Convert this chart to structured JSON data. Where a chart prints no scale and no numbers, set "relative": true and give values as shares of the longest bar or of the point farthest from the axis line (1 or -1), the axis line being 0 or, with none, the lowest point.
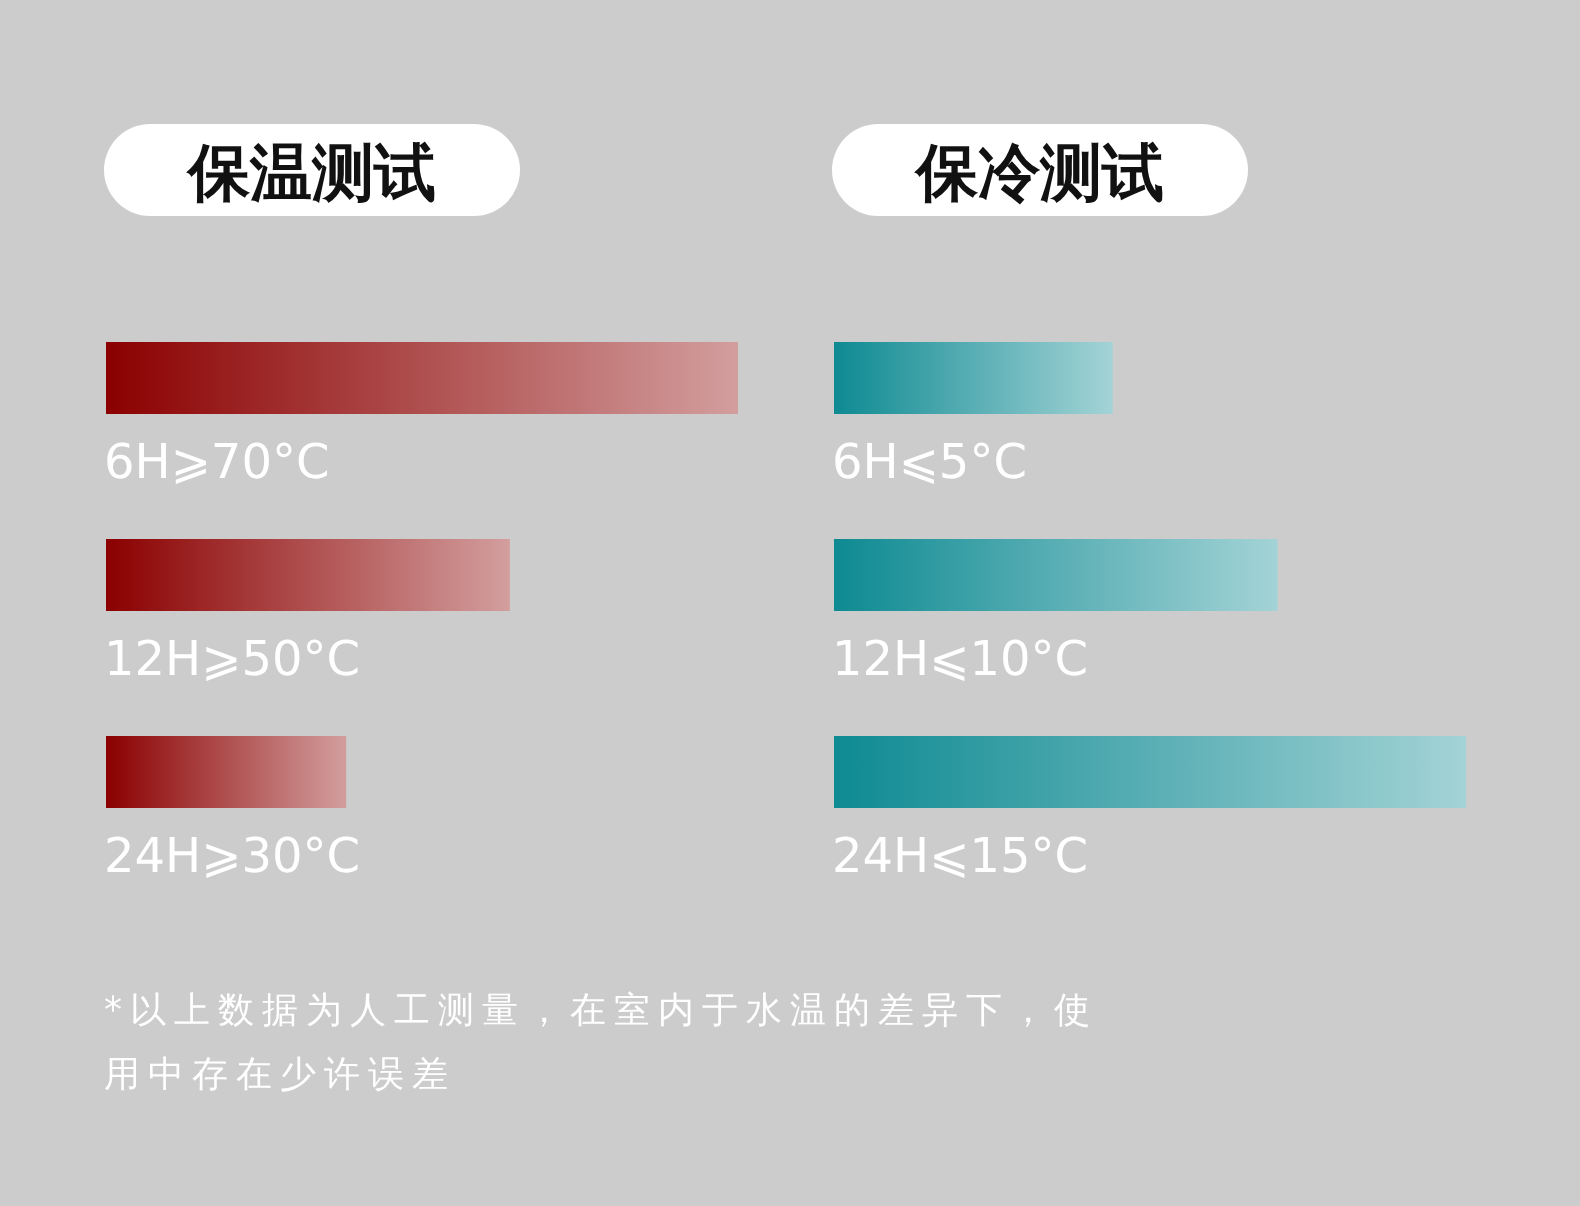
{
  "chart_data": [
    {
      "type": "bar",
      "title": "保温测试",
      "orientation": "horizontal",
      "relative": true,
      "categories": [
        "6H⩾70°C",
        "12H⩾50°C",
        "24H⩾30°C"
      ],
      "series": [
        {
          "color": "#8b0000",
          "values": [
            1,
            0.639,
            0.38
          ]
        }
      ],
      "annotations": [
        "*以上数据为人工测量，在室内于水温的差异下，使用中存在少许误差"
      ]
    },
    {
      "type": "bar",
      "title": "保冷测试",
      "orientation": "horizontal",
      "relative": true,
      "categories": [
        "6H⩽5°C",
        "12H⩽10°C",
        "24H⩽15°C"
      ],
      "series": [
        {
          "color": "#0e8a92",
          "values": [
            0.441,
            0.702,
            1
          ]
        }
      ]
    }
  ]
}
